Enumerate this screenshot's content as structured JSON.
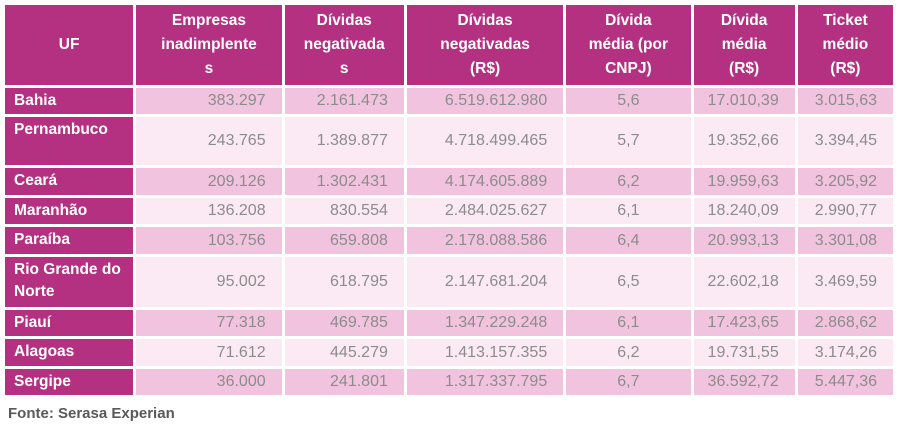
{
  "table": {
    "header_labels_display": [
      "UF",
      "Empresas\ninadimplente\ns",
      "Dívidas\nnegativada\ns",
      "Dívidas\nnegativadas\n(R$)",
      "Dívida\nmédia (por\nCNPJ)",
      "Dívida\nmédia\n(R$)",
      "Ticket\nmédio\n(R$)"
    ],
    "rows": [
      {
        "uf": "Bahia",
        "values": [
          "383.297",
          "2.161.473",
          "6.519.612.980",
          "5,6",
          "17.010,39",
          "3.015,63"
        ]
      },
      {
        "uf": "Pernambuco",
        "values": [
          "243.765",
          "1.389.877",
          "4.718.499.465",
          "5,7",
          "19.352,66",
          "3.394,45"
        ]
      },
      {
        "uf": "Ceará",
        "values": [
          "209.126",
          "1.302.431",
          "4.174.605.889",
          "6,2",
          "19.959,63",
          "3.205,92"
        ]
      },
      {
        "uf": "Maranhão",
        "values": [
          "136.208",
          "830.554",
          "2.484.025.627",
          "6,1",
          "18.240,09",
          "2.990,77"
        ]
      },
      {
        "uf": "Paraíba",
        "values": [
          "103.756",
          "659.808",
          "2.178.088.586",
          "6,4",
          "20.993,13",
          "3.301,08"
        ]
      },
      {
        "uf": "Rio Grande do Norte",
        "values": [
          "95.002",
          "618.795",
          "2.147.681.204",
          "6,5",
          "22.602,18",
          "3.469,59"
        ]
      },
      {
        "uf": "Piauí",
        "values": [
          "77.318",
          "469.785",
          "1.347.229.248",
          "6,1",
          "17.423,65",
          "2.868,62"
        ]
      },
      {
        "uf": "Alagoas",
        "values": [
          "71.612",
          "445.279",
          "1.413.157.355",
          "6,2",
          "19.731,55",
          "3.174,26"
        ]
      },
      {
        "uf": "Sergipe",
        "values": [
          "36.000",
          "241.801",
          "1.317.337.795",
          "6,7",
          "36.592,72",
          "5.447,36"
        ]
      }
    ]
  },
  "chart_data": {
    "type": "table",
    "columns": [
      "UF",
      "Empresas inadimplentes",
      "Dívidas negativadas",
      "Dívidas negativadas (R$)",
      "Dívida média (por CNPJ)",
      "Dívida média (R$)",
      "Ticket médio (R$)"
    ],
    "rows": [
      [
        "Bahia",
        383297,
        2161473,
        6519612980,
        5.6,
        17010.39,
        3015.63
      ],
      [
        "Pernambuco",
        243765,
        1389877,
        4718499465,
        5.7,
        19352.66,
        3394.45
      ],
      [
        "Ceará",
        209126,
        1302431,
        4174605889,
        6.2,
        19959.63,
        3205.92
      ],
      [
        "Maranhão",
        136208,
        830554,
        2484025627,
        6.1,
        18240.09,
        2990.77
      ],
      [
        "Paraíba",
        103756,
        659808,
        2178088586,
        6.4,
        20993.13,
        3301.08
      ],
      [
        "Rio Grande do Norte",
        95002,
        618795,
        2147681204,
        6.5,
        22602.18,
        3469.59
      ],
      [
        "Piauí",
        77318,
        469785,
        1347229248,
        6.1,
        17423.65,
        2868.62
      ],
      [
        "Alagoas",
        71612,
        445279,
        1413157355,
        6.2,
        19731.55,
        3174.26
      ],
      [
        "Sergipe",
        36000,
        241801,
        1317337795,
        6.7,
        36592.72,
        5447.36
      ]
    ],
    "title": "",
    "legend": "none",
    "number_format": "pt-BR"
  },
  "footer": {
    "source": "Fonte: Serasa Experian"
  },
  "colors": {
    "brand": "#b43181",
    "row_medium": "#f2c3de",
    "row_light": "#fbe9f4",
    "value_text": "#8c8c8c",
    "footer_text": "#595959",
    "background": "#ffffff"
  }
}
